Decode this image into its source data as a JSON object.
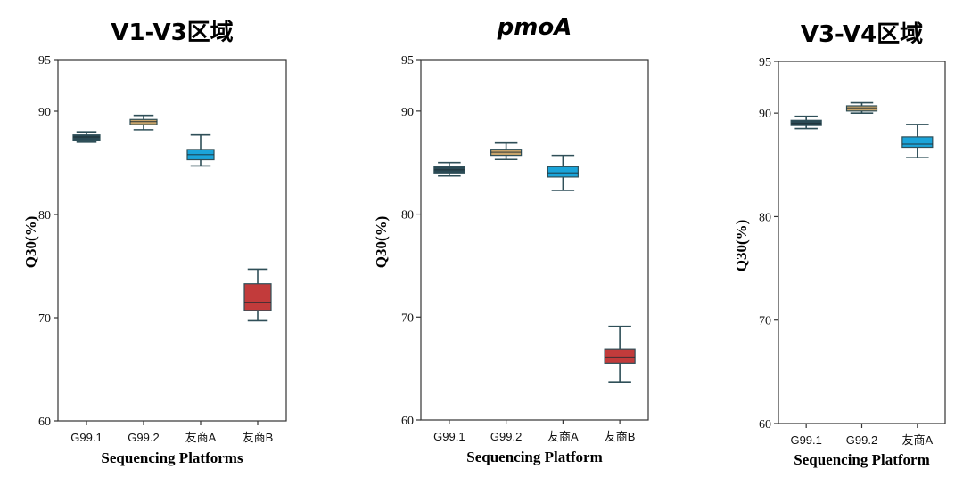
{
  "colors": {
    "G99.1": "#2b4a55",
    "G99.2": "#c7a46b",
    "友商A": "#1ba4d9",
    "友商B": "#c23b3b",
    "whisker": "#2f4f58",
    "axis": "#333333"
  },
  "chart_data": [
    {
      "type": "box",
      "title": "V1-V3区域",
      "xlabel": "Sequencing Platforms",
      "ylabel": "Q30(%)",
      "ylim": [
        60,
        95
      ],
      "yticks": [
        60,
        70,
        80,
        90,
        95
      ],
      "categories": [
        "G99.1",
        "G99.2",
        "友商A",
        "友商B"
      ],
      "boxes": [
        {
          "min": 87.0,
          "q1": 87.2,
          "median": 87.5,
          "q3": 87.7,
          "max": 88.0
        },
        {
          "min": 88.2,
          "q1": 88.7,
          "median": 89.0,
          "q3": 89.2,
          "max": 89.6
        },
        {
          "min": 84.7,
          "q1": 85.3,
          "median": 85.8,
          "q3": 86.3,
          "max": 87.7
        },
        {
          "min": 69.7,
          "q1": 70.7,
          "median": 71.5,
          "q3": 73.3,
          "max": 74.7
        }
      ]
    },
    {
      "type": "box",
      "title": "pmoA",
      "title_italic": true,
      "xlabel": "Sequencing Platform",
      "ylabel": "Q30(%)",
      "ylim": [
        60,
        95
      ],
      "yticks": [
        60,
        70,
        80,
        90,
        95
      ],
      "categories": [
        "G99.1",
        "G99.2",
        "友商A",
        "友商B"
      ],
      "boxes": [
        {
          "min": 83.7,
          "q1": 84.0,
          "median": 84.3,
          "q3": 84.6,
          "max": 85.0
        },
        {
          "min": 85.3,
          "q1": 85.7,
          "median": 86.0,
          "q3": 86.3,
          "max": 86.9
        },
        {
          "min": 82.3,
          "q1": 83.6,
          "median": 84.0,
          "q3": 84.6,
          "max": 85.7
        },
        {
          "min": 63.7,
          "q1": 65.5,
          "median": 66.1,
          "q3": 66.9,
          "max": 69.1
        }
      ]
    },
    {
      "type": "box",
      "title": "V3-V4区域",
      "xlabel": "Sequencing Platform",
      "ylabel": "Q30(%)",
      "ylim": [
        60,
        95
      ],
      "yticks": [
        60,
        70,
        80,
        90,
        95
      ],
      "categories": [
        "G99.1",
        "G99.2",
        "友商A"
      ],
      "boxes": [
        {
          "min": 88.5,
          "q1": 88.8,
          "median": 89.0,
          "q3": 89.3,
          "max": 89.7
        },
        {
          "min": 90.0,
          "q1": 90.2,
          "median": 90.5,
          "q3": 90.7,
          "max": 91.0
        },
        {
          "min": 85.7,
          "q1": 86.7,
          "median": 87.0,
          "q3": 87.7,
          "max": 88.9
        }
      ]
    }
  ]
}
